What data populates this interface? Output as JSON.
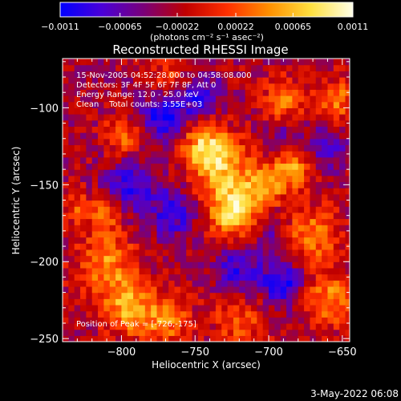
{
  "chart_data": {
    "type": "heatmap",
    "title": "Reconstructed RHESSI Image",
    "xlabel": "Heliocentric X (arcsec)",
    "ylabel": "Heliocentric Y (arcsec)",
    "xlim": [
      -840,
      -645
    ],
    "ylim": [
      -252,
      -68
    ],
    "xticks": [
      -800,
      -750,
      -700,
      -650
    ],
    "xtick_labels": [
      "−800",
      "−750",
      "−700",
      "−650"
    ],
    "yticks": [
      -250,
      -200,
      -150,
      -100
    ],
    "ytick_labels": [
      "−250",
      "−200",
      "−150",
      "−100"
    ],
    "colorbar": {
      "min": -0.0011,
      "max": 0.0011,
      "tick_values": [
        -0.0011,
        -0.00065,
        -0.00022,
        0.00022,
        0.00065,
        0.0011
      ],
      "tick_labels": [
        "−0.0011",
        "−0.00065",
        "−0.00022",
        "0.00022",
        "0.00065",
        "0.0011"
      ],
      "unit_label": "(photons cm⁻² s⁻¹ asec⁻²)",
      "colors": [
        "#0000ff",
        "#4a00d8",
        "#7a0078",
        "#c00000",
        "#ff3000",
        "#ff9000",
        "#ffe040",
        "#ffffe8"
      ]
    },
    "annotations": [
      "15-Nov-2005 04:52:28.000 to 04:58:08.000",
      "Detectors: 3F 4F 5F 6F 7F 8F, Att 0",
      "Energy Range: 12.0 - 25.0 keV",
      "Clean    Total counts: 3.55E+03"
    ],
    "peak_label": "Position of Peak = [-726,-175]",
    "peak": {
      "x": -726,
      "y": -175
    },
    "sources": [
      {
        "x": -734,
        "y": -138,
        "value": 0.0009,
        "sigma": 14
      },
      {
        "x": -724,
        "y": -168,
        "value": 0.0011,
        "sigma": 12
      },
      {
        "x": -744,
        "y": -122,
        "value": 0.0007,
        "sigma": 10
      },
      {
        "x": -705,
        "y": -152,
        "value": 0.0006,
        "sigma": 10
      },
      {
        "x": -810,
        "y": -202,
        "value": 0.0007,
        "sigma": 14
      },
      {
        "x": -795,
        "y": -230,
        "value": 0.0008,
        "sigma": 12
      },
      {
        "x": -770,
        "y": -238,
        "value": 0.0006,
        "sigma": 12
      },
      {
        "x": -685,
        "y": -140,
        "value": 0.0008,
        "sigma": 10
      },
      {
        "x": -670,
        "y": -182,
        "value": 0.0007,
        "sigma": 12
      },
      {
        "x": -660,
        "y": -225,
        "value": 0.0007,
        "sigma": 12
      },
      {
        "x": -690,
        "y": -95,
        "value": 0.0006,
        "sigma": 10
      },
      {
        "x": -655,
        "y": -95,
        "value": 0.0006,
        "sigma": 10
      },
      {
        "x": -800,
        "y": -118,
        "value": 0.0006,
        "sigma": 8
      },
      {
        "x": -720,
        "y": -238,
        "value": 0.0005,
        "sigma": 12
      },
      {
        "x": -830,
        "y": -165,
        "value": 0.0004,
        "sigma": 8
      },
      {
        "x": -810,
        "y": -168,
        "value": 0.0005,
        "sigma": 8
      },
      {
        "x": -770,
        "y": -80,
        "value": 0.0004,
        "sigma": 8
      },
      {
        "x": -770,
        "y": -105,
        "value": -0.0009,
        "sigma": 10
      },
      {
        "x": -745,
        "y": -93,
        "value": -0.0006,
        "sigma": 10
      },
      {
        "x": -795,
        "y": -150,
        "value": -0.0006,
        "sigma": 12
      },
      {
        "x": -765,
        "y": -168,
        "value": -0.0006,
        "sigma": 12
      },
      {
        "x": -720,
        "y": -205,
        "value": -0.0006,
        "sigma": 12
      },
      {
        "x": -690,
        "y": -215,
        "value": -0.0007,
        "sigma": 10
      },
      {
        "x": -700,
        "y": -178,
        "value": -0.0004,
        "sigma": 8
      },
      {
        "x": -660,
        "y": -125,
        "value": -0.0005,
        "sigma": 10
      },
      {
        "x": -690,
        "y": -120,
        "value": -0.0004,
        "sigma": 8
      }
    ]
  },
  "footer_date": "3-May-2022 06:08"
}
